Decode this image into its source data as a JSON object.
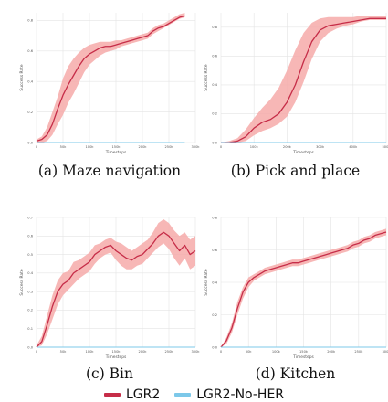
{
  "colors": {
    "lgr2": "#c62d48",
    "lgr2_band": "#f6aaa9",
    "nosher": "#7cc8e9",
    "grid": "#e4e4e4"
  },
  "legend": {
    "series": [
      {
        "name": "LGR2",
        "color": "#c62d48"
      },
      {
        "name": "LGR2-No-HER",
        "color": "#7cc8e9"
      }
    ]
  },
  "chart_data": [
    {
      "id": "maze",
      "type": "line",
      "caption": "(a) Maze navigation",
      "xlabel": "Timesteps",
      "ylabel": "Success Rate",
      "xlim": [
        0,
        300000
      ],
      "ylim": [
        0,
        0.85
      ],
      "xticks": [
        0,
        50000,
        100000,
        150000,
        200000,
        250000,
        300000
      ],
      "xticklabels": [
        "0",
        "50k",
        "100k",
        "150k",
        "200k",
        "250k",
        "300k"
      ],
      "yticks": [
        0,
        0.2,
        0.4,
        0.6,
        0.8
      ],
      "yticklabels": [
        "0.0",
        "0.2",
        "0.4",
        "0.6",
        "0.8"
      ],
      "series": [
        {
          "name": "LGR2",
          "x": [
            0,
            10000,
            20000,
            30000,
            40000,
            50000,
            60000,
            70000,
            80000,
            90000,
            100000,
            110000,
            120000,
            130000,
            140000,
            150000,
            160000,
            170000,
            180000,
            190000,
            200000,
            210000,
            220000,
            230000,
            240000,
            250000,
            260000,
            270000,
            280000
          ],
          "y": [
            0.01,
            0.02,
            0.05,
            0.12,
            0.22,
            0.31,
            0.38,
            0.44,
            0.5,
            0.55,
            0.58,
            0.6,
            0.62,
            0.63,
            0.63,
            0.64,
            0.65,
            0.66,
            0.67,
            0.68,
            0.69,
            0.7,
            0.73,
            0.75,
            0.76,
            0.78,
            0.8,
            0.82,
            0.83
          ],
          "lower": [
            0.0,
            0.0,
            0.01,
            0.05,
            0.12,
            0.18,
            0.26,
            0.32,
            0.39,
            0.46,
            0.51,
            0.54,
            0.57,
            0.59,
            0.6,
            0.61,
            0.63,
            0.64,
            0.65,
            0.66,
            0.67,
            0.68,
            0.71,
            0.73,
            0.75,
            0.77,
            0.79,
            0.81,
            0.82
          ],
          "upper": [
            0.02,
            0.04,
            0.1,
            0.2,
            0.3,
            0.42,
            0.5,
            0.55,
            0.59,
            0.62,
            0.64,
            0.65,
            0.66,
            0.66,
            0.66,
            0.67,
            0.67,
            0.68,
            0.69,
            0.7,
            0.71,
            0.72,
            0.75,
            0.77,
            0.78,
            0.8,
            0.82,
            0.84,
            0.85
          ]
        },
        {
          "name": "LGR2-No-HER",
          "x": [
            0,
            280000
          ],
          "y": [
            0.0,
            0.0
          ]
        }
      ]
    },
    {
      "id": "pickplace",
      "type": "line",
      "caption": "(b) Pick and place",
      "xlabel": "Timesteps",
      "ylabel": "Success Rate",
      "xlim": [
        0,
        500000
      ],
      "ylim": [
        0,
        0.9
      ],
      "xticks": [
        0,
        100000,
        200000,
        300000,
        400000,
        500000
      ],
      "xticklabels": [
        "0",
        "100k",
        "200k",
        "300k",
        "400k",
        "500k"
      ],
      "yticks": [
        0,
        0.2,
        0.4,
        0.6,
        0.8
      ],
      "yticklabels": [
        "0.0",
        "0.2",
        "0.4",
        "0.6",
        "0.8"
      ],
      "series": [
        {
          "name": "LGR2",
          "x": [
            0,
            25000,
            50000,
            75000,
            100000,
            125000,
            150000,
            175000,
            200000,
            225000,
            250000,
            275000,
            300000,
            325000,
            350000,
            375000,
            400000,
            425000,
            450000,
            475000,
            500000
          ],
          "y": [
            0.0,
            0.0,
            0.01,
            0.04,
            0.1,
            0.14,
            0.16,
            0.2,
            0.28,
            0.4,
            0.56,
            0.7,
            0.78,
            0.81,
            0.82,
            0.83,
            0.84,
            0.85,
            0.86,
            0.86,
            0.86
          ],
          "lower": [
            0.0,
            0.0,
            0.0,
            0.01,
            0.05,
            0.08,
            0.1,
            0.13,
            0.18,
            0.28,
            0.42,
            0.58,
            0.7,
            0.76,
            0.79,
            0.81,
            0.82,
            0.84,
            0.85,
            0.85,
            0.85
          ],
          "upper": [
            0.0,
            0.01,
            0.03,
            0.09,
            0.17,
            0.24,
            0.3,
            0.38,
            0.5,
            0.64,
            0.76,
            0.83,
            0.86,
            0.87,
            0.87,
            0.87,
            0.87,
            0.88,
            0.88,
            0.88,
            0.88
          ]
        },
        {
          "name": "LGR2-No-HER",
          "x": [
            0,
            500000
          ],
          "y": [
            0.0,
            0.0
          ]
        }
      ]
    },
    {
      "id": "bin",
      "type": "line",
      "caption": "(c) Bin",
      "xlabel": "Timesteps",
      "ylabel": "Success Rate",
      "xlim": [
        0,
        300000
      ],
      "ylim": [
        0,
        0.7
      ],
      "xticks": [
        0,
        50000,
        100000,
        150000,
        200000,
        250000,
        300000
      ],
      "xticklabels": [
        "0",
        "50k",
        "100k",
        "150k",
        "200k",
        "250k",
        "300k"
      ],
      "yticks": [
        0,
        0.1,
        0.2,
        0.3,
        0.4,
        0.5,
        0.6,
        0.7
      ],
      "yticklabels": [
        "0.0",
        "0.1",
        "0.2",
        "0.3",
        "0.4",
        "0.5",
        "0.6",
        "0.7"
      ],
      "series": [
        {
          "name": "LGR2",
          "x": [
            0,
            10000,
            20000,
            30000,
            40000,
            50000,
            60000,
            70000,
            80000,
            90000,
            100000,
            110000,
            120000,
            130000,
            140000,
            150000,
            160000,
            170000,
            180000,
            190000,
            200000,
            210000,
            220000,
            230000,
            240000,
            250000,
            260000,
            270000,
            280000,
            290000,
            300000
          ],
          "y": [
            0.0,
            0.03,
            0.12,
            0.22,
            0.3,
            0.34,
            0.36,
            0.4,
            0.42,
            0.44,
            0.46,
            0.5,
            0.52,
            0.54,
            0.55,
            0.52,
            0.5,
            0.48,
            0.47,
            0.49,
            0.5,
            0.53,
            0.56,
            0.6,
            0.62,
            0.6,
            0.56,
            0.52,
            0.55,
            0.5,
            0.52
          ],
          "lower": [
            0.0,
            0.01,
            0.07,
            0.15,
            0.23,
            0.28,
            0.31,
            0.34,
            0.37,
            0.39,
            0.41,
            0.45,
            0.48,
            0.5,
            0.51,
            0.47,
            0.44,
            0.42,
            0.42,
            0.44,
            0.45,
            0.48,
            0.51,
            0.54,
            0.56,
            0.53,
            0.48,
            0.44,
            0.48,
            0.42,
            0.44
          ],
          "upper": [
            0.01,
            0.06,
            0.17,
            0.28,
            0.36,
            0.4,
            0.41,
            0.46,
            0.47,
            0.49,
            0.51,
            0.55,
            0.56,
            0.58,
            0.59,
            0.57,
            0.56,
            0.54,
            0.52,
            0.54,
            0.56,
            0.58,
            0.62,
            0.67,
            0.69,
            0.67,
            0.63,
            0.6,
            0.62,
            0.58,
            0.6
          ]
        },
        {
          "name": "LGR2-No-HER",
          "x": [
            0,
            300000
          ],
          "y": [
            0.0,
            0.0
          ]
        }
      ]
    },
    {
      "id": "kitchen",
      "type": "line",
      "caption": "(d) Kitchen",
      "xlabel": "Timesteps",
      "ylabel": "Success Rate",
      "xlim": [
        0,
        300000
      ],
      "ylim": [
        0,
        0.8
      ],
      "xticks": [
        0,
        50000,
        100000,
        150000,
        200000,
        250000,
        300000
      ],
      "xticklabels": [
        "0",
        "50k",
        "100k",
        "150k",
        "200k",
        "250k",
        "300k"
      ],
      "yticks": [
        0,
        0.2,
        0.4,
        0.6,
        0.8
      ],
      "yticklabels": [
        "0.0",
        "0.2",
        "0.4",
        "0.6",
        "0.8"
      ],
      "series": [
        {
          "name": "LGR2",
          "x": [
            0,
            10000,
            20000,
            30000,
            40000,
            50000,
            60000,
            70000,
            80000,
            90000,
            100000,
            110000,
            120000,
            130000,
            140000,
            150000,
            160000,
            170000,
            180000,
            190000,
            200000,
            210000,
            220000,
            230000,
            240000,
            250000,
            260000,
            270000,
            280000,
            290000,
            300000
          ],
          "y": [
            0.0,
            0.04,
            0.12,
            0.24,
            0.34,
            0.4,
            0.43,
            0.45,
            0.47,
            0.48,
            0.49,
            0.5,
            0.51,
            0.52,
            0.52,
            0.53,
            0.54,
            0.55,
            0.56,
            0.57,
            0.58,
            0.59,
            0.6,
            0.61,
            0.63,
            0.64,
            0.66,
            0.67,
            0.69,
            0.7,
            0.71
          ],
          "lower": [
            0.0,
            0.02,
            0.09,
            0.2,
            0.3,
            0.37,
            0.41,
            0.43,
            0.45,
            0.46,
            0.47,
            0.48,
            0.49,
            0.5,
            0.5,
            0.51,
            0.52,
            0.53,
            0.54,
            0.55,
            0.56,
            0.57,
            0.58,
            0.59,
            0.61,
            0.62,
            0.64,
            0.65,
            0.67,
            0.68,
            0.69
          ],
          "upper": [
            0.0,
            0.06,
            0.15,
            0.28,
            0.37,
            0.43,
            0.45,
            0.47,
            0.49,
            0.5,
            0.51,
            0.52,
            0.53,
            0.54,
            0.54,
            0.55,
            0.56,
            0.57,
            0.58,
            0.59,
            0.6,
            0.61,
            0.62,
            0.63,
            0.65,
            0.66,
            0.68,
            0.69,
            0.71,
            0.72,
            0.73
          ]
        },
        {
          "name": "LGR2-No-HER",
          "x": [
            0,
            300000
          ],
          "y": [
            0.0,
            0.0
          ]
        }
      ]
    }
  ]
}
